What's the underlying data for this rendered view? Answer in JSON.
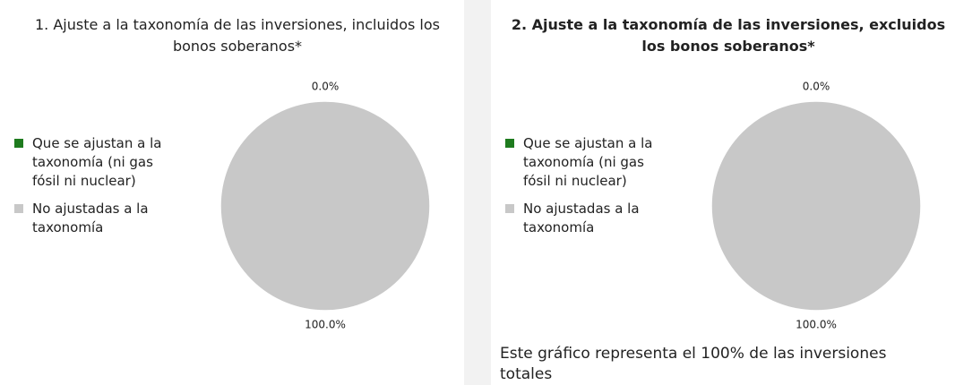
{
  "chart_data": [
    {
      "type": "pie",
      "title": "1. Ajuste a la taxonomía de las inversiones, incluidos los bonos soberanos*",
      "title_bold": false,
      "categories": [
        "Que se ajustan a la taxonomía (ni gas fósil ni nuclear)",
        "No ajustadas a la taxonomía"
      ],
      "values": [
        0,
        100
      ],
      "value_labels": [
        "0.0%",
        "100.0%"
      ],
      "colors": [
        "#1e7b1e",
        "#c8c8c8"
      ],
      "legend": "left"
    },
    {
      "type": "pie",
      "title": "2. Ajuste a la taxonomía de las inversiones, excluidos los bonos soberanos*",
      "title_bold": true,
      "categories": [
        "Que se ajustan a la taxonomía (ni gas fósil ni nuclear)",
        "No ajustadas a la taxonomía"
      ],
      "values": [
        0,
        100
      ],
      "value_labels": [
        "0.0%",
        "100.0%"
      ],
      "colors": [
        "#1e7b1e",
        "#c8c8c8"
      ],
      "legend": "left"
    }
  ],
  "footnote": "Este gráfico representa el 100% de las inversiones totales"
}
